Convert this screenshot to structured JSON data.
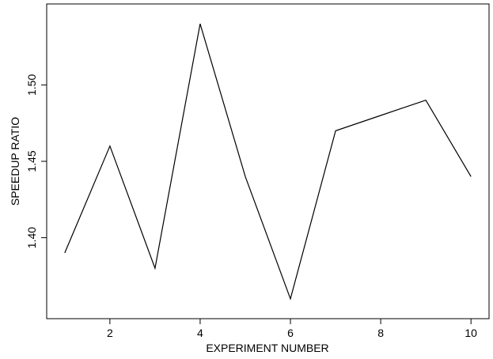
{
  "chart_data": {
    "type": "line",
    "xlabel": "EXPERIMENT NUMBER",
    "ylabel": "SPEEDUP RATIO",
    "x": [
      1,
      2,
      3,
      4,
      5,
      6,
      7,
      8,
      9,
      10
    ],
    "series": [
      {
        "values": [
          1.39,
          1.46,
          1.38,
          1.54,
          1.44,
          1.36,
          1.47,
          1.48,
          1.49,
          1.44
        ]
      }
    ],
    "xticks": [
      2,
      4,
      6,
      8,
      10
    ],
    "xtick_labels": [
      "2",
      "4",
      "6",
      "8",
      "10"
    ],
    "yticks": [
      1.4,
      1.45,
      1.5
    ],
    "ytick_labels": [
      "1.40",
      "1.45",
      "1.50"
    ],
    "xlim": [
      0.6,
      10.4
    ],
    "ylim": [
      1.347,
      1.553
    ],
    "grid": false,
    "line_color": "#000000"
  }
}
